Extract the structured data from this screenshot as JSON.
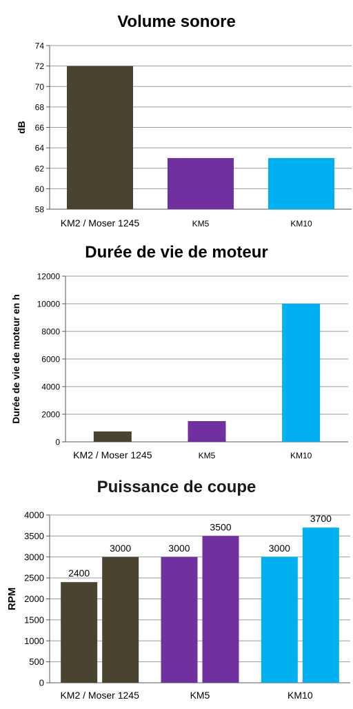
{
  "chart_data": [
    {
      "type": "bar",
      "title": "Volume sonore",
      "xlabel": "",
      "ylabel": "dB",
      "categories": [
        "KM2 / Moser 1245",
        "KM5",
        "KM10"
      ],
      "values": [
        72,
        63,
        63
      ],
      "colors": [
        "#4a4330",
        "#7030a0",
        "#00b0f0"
      ],
      "ylim": [
        58,
        74
      ],
      "ytick_step": 2,
      "grid": true
    },
    {
      "type": "bar",
      "title": "Durée de vie de moteur",
      "xlabel": "",
      "ylabel": "Durée de vie de moteur en h",
      "categories": [
        "KM2 / Moser 1245",
        "KM5",
        "KM10"
      ],
      "values": [
        750,
        1500,
        10000
      ],
      "colors": [
        "#4a4330",
        "#7030a0",
        "#00b0f0"
      ],
      "ylim": [
        0,
        12000
      ],
      "ytick_step": 2000,
      "grid": true
    },
    {
      "type": "bar",
      "title": "Puissance de coupe",
      "xlabel": "",
      "ylabel": "RPM",
      "categories": [
        "KM2 / Moser 1245",
        "KM5",
        "KM10"
      ],
      "series": [
        {
          "values": [
            2400,
            3000,
            3000
          ]
        },
        {
          "values": [
            3000,
            3500,
            3700
          ]
        }
      ],
      "colors": [
        "#4a4330",
        "#7030a0",
        "#00b0f0"
      ],
      "data_labels": true,
      "ylim": [
        0,
        4000
      ],
      "ytick_step": 500,
      "grid": true
    }
  ]
}
